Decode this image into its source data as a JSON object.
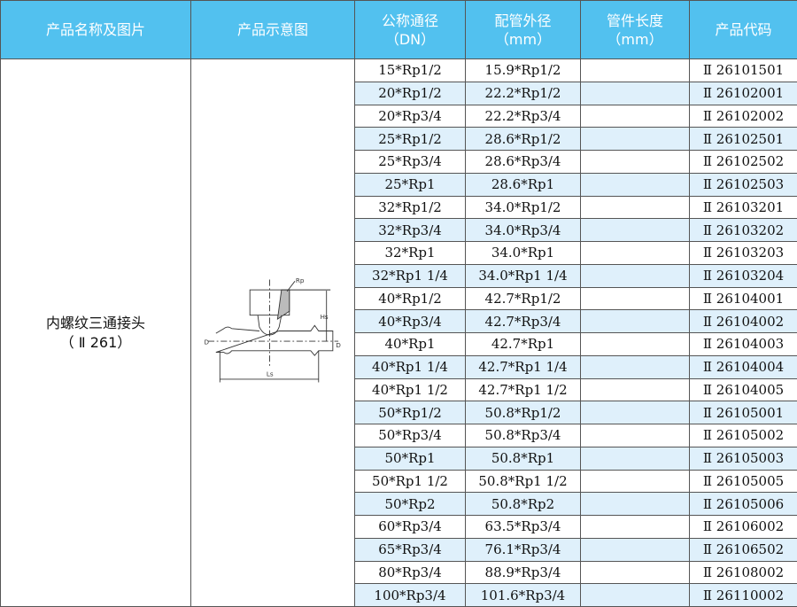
{
  "headers": [
    "产品名称及图片",
    "产品示意图",
    "公称通径",
    "（DN）",
    "配管外径",
    "（mm）",
    "管件长度",
    "（mm）",
    "产品代码"
  ],
  "product": {
    "name": "内螺纹三通接头",
    "code": "（ Ⅱ 261）"
  },
  "diagram_labels": {
    "rp": "Rp",
    "hs": "Hs",
    "d1": "D",
    "d2": "D",
    "ls": "Ls"
  },
  "rows": [
    [
      "15*Rp1/2",
      "15.9*Rp1/2",
      "",
      "Ⅱ 26101501"
    ],
    [
      "20*Rp1/2",
      "22.2*Rp1/2",
      "",
      "Ⅱ 26102001"
    ],
    [
      "20*Rp3/4",
      "22.2*Rp3/4",
      "",
      "Ⅱ 26102002"
    ],
    [
      "25*Rp1/2",
      "28.6*Rp1/2",
      "",
      "Ⅱ 26102501"
    ],
    [
      "25*Rp3/4",
      "28.6*Rp3/4",
      "",
      "Ⅱ 26102502"
    ],
    [
      "25*Rp1",
      "28.6*Rp1",
      "",
      "Ⅱ 26102503"
    ],
    [
      "32*Rp1/2",
      "34.0*Rp1/2",
      "",
      "Ⅱ 26103201"
    ],
    [
      "32*Rp3/4",
      "34.0*Rp3/4",
      "",
      "Ⅱ 26103202"
    ],
    [
      "32*Rp1",
      "34.0*Rp1",
      "",
      "Ⅱ 26103203"
    ],
    [
      "32*Rp1 1/4",
      "34.0*Rp1 1/4",
      "",
      "Ⅱ 26103204"
    ],
    [
      "40*Rp1/2",
      "42.7*Rp1/2",
      "",
      "Ⅱ 26104001"
    ],
    [
      "40*Rp3/4",
      "42.7*Rp3/4",
      "",
      "Ⅱ 26104002"
    ],
    [
      "40*Rp1",
      "42.7*Rp1",
      "",
      "Ⅱ 26104003"
    ],
    [
      "40*Rp1 1/4",
      "42.7*Rp1 1/4",
      "",
      "Ⅱ 26104004"
    ],
    [
      "40*Rp1 1/2",
      "42.7*Rp1 1/2",
      "",
      "Ⅱ 26104005"
    ],
    [
      "50*Rp1/2",
      "50.8*Rp1/2",
      "",
      "Ⅱ 26105001"
    ],
    [
      "50*Rp3/4",
      "50.8*Rp3/4",
      "",
      "Ⅱ 26105002"
    ],
    [
      "50*Rp1",
      "50.8*Rp1",
      "",
      "Ⅱ 26105003"
    ],
    [
      "50*Rp1 1/2",
      "50.8*Rp1 1/2",
      "",
      "Ⅱ 26105005"
    ],
    [
      "50*Rp2",
      "50.8*Rp2",
      "",
      "Ⅱ 26105006"
    ],
    [
      "60*Rp3/4",
      "63.5*Rp3/4",
      "",
      "Ⅱ 26106002"
    ],
    [
      "65*Rp3/4",
      "76.1*Rp3/4",
      "",
      "Ⅱ 26106502"
    ],
    [
      "80*Rp3/4",
      "88.9*Rp3/4",
      "",
      "Ⅱ 26108002"
    ],
    [
      "100*Rp3/4",
      "101.6*Rp3/4",
      "",
      "Ⅱ 26110002"
    ]
  ]
}
